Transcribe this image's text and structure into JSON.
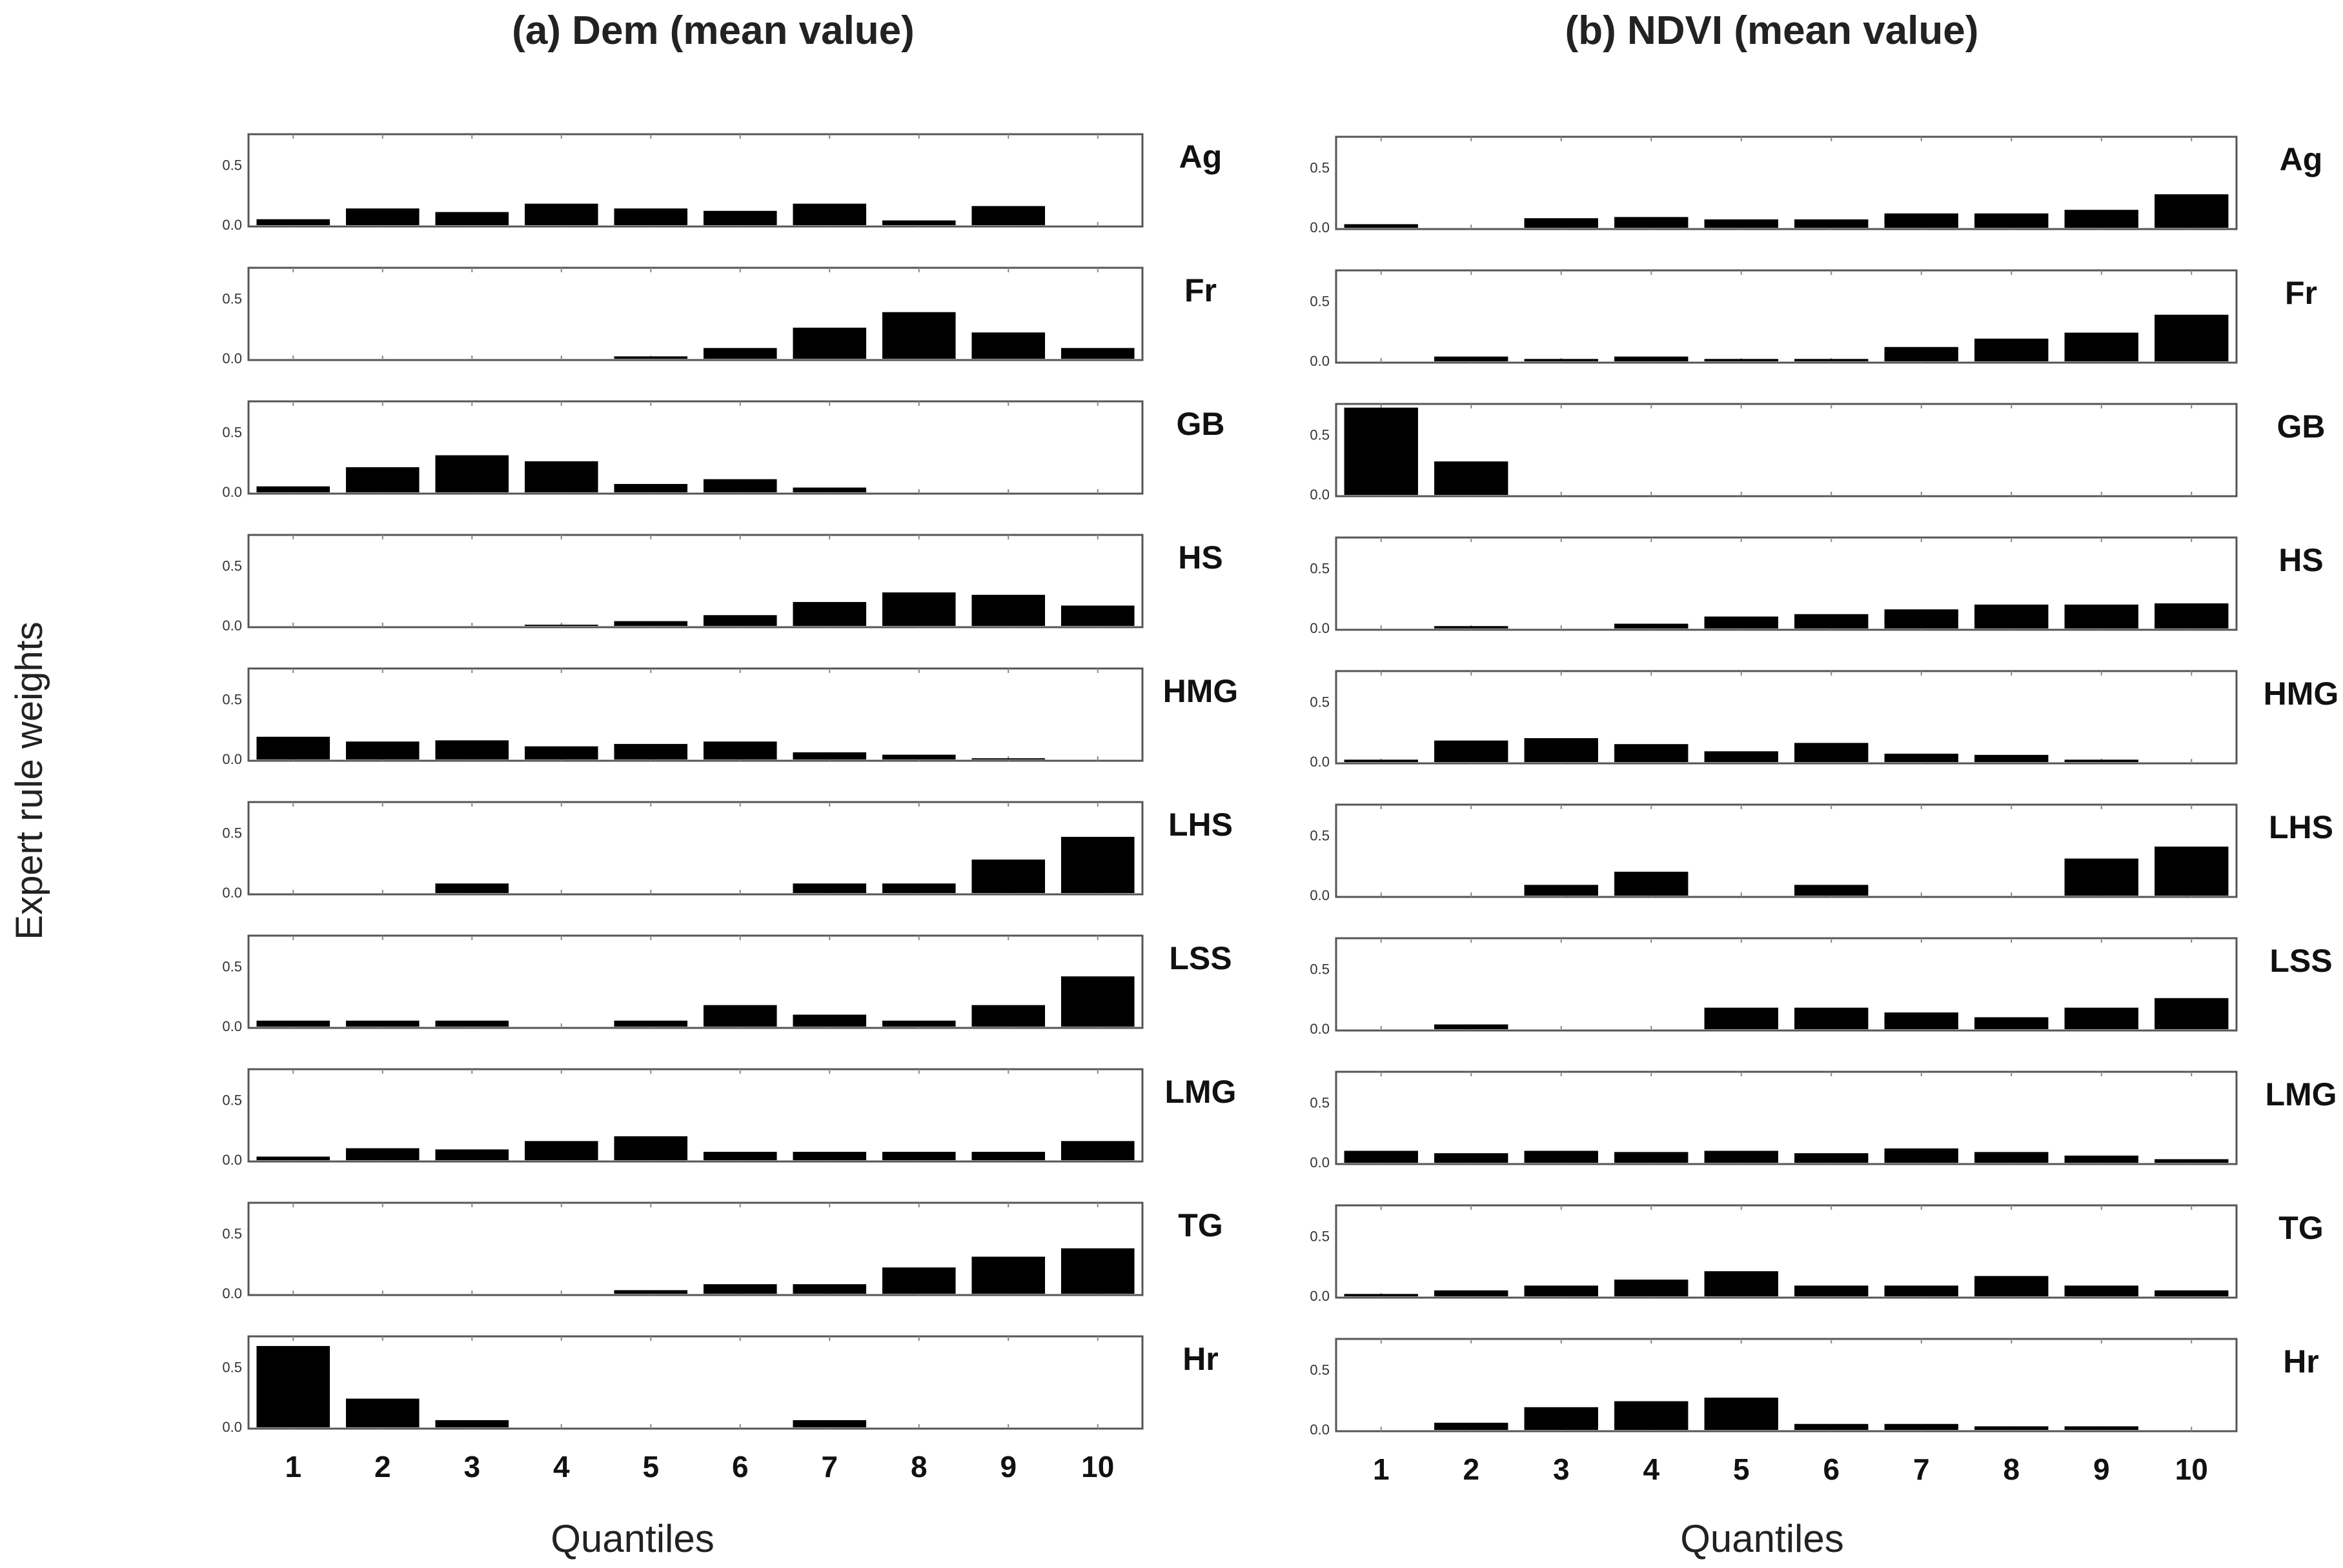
{
  "figure": {
    "ylabel": "Expert rule weights",
    "quantiles": [
      "1",
      "2",
      "3",
      "4",
      "5",
      "6",
      "7",
      "8",
      "9",
      "10"
    ],
    "y_ticks": [
      "0.0",
      "0.5"
    ],
    "ylim": [
      0,
      0.75
    ]
  },
  "chart_data": [
    {
      "type": "bar",
      "title": "(a) Dem (mean value)",
      "xlabel": "Quantiles",
      "ylabel": "Expert rule weights",
      "ylim": [
        0,
        0.75
      ],
      "categories": [
        "1",
        "2",
        "3",
        "4",
        "5",
        "6",
        "7",
        "8",
        "9",
        "10"
      ],
      "series": [
        {
          "name": "Ag",
          "values": [
            0.05,
            0.14,
            0.11,
            0.18,
            0.14,
            0.12,
            0.18,
            0.04,
            0.16,
            0.0
          ]
        },
        {
          "name": "Fr",
          "values": [
            0.0,
            0.0,
            0.0,
            0.0,
            0.02,
            0.09,
            0.26,
            0.39,
            0.22,
            0.09
          ]
        },
        {
          "name": "GB",
          "values": [
            0.05,
            0.21,
            0.31,
            0.26,
            0.07,
            0.11,
            0.04,
            0.0,
            0.0,
            0.0
          ]
        },
        {
          "name": "HS",
          "values": [
            0.0,
            0.0,
            0.0,
            0.01,
            0.04,
            0.09,
            0.2,
            0.28,
            0.26,
            0.17
          ]
        },
        {
          "name": "HMG",
          "values": [
            0.19,
            0.15,
            0.16,
            0.11,
            0.13,
            0.15,
            0.06,
            0.04,
            0.01,
            0.0
          ]
        },
        {
          "name": "LHS",
          "values": [
            0.0,
            0.0,
            0.08,
            0.0,
            0.0,
            0.0,
            0.08,
            0.08,
            0.28,
            0.47
          ]
        },
        {
          "name": "LSS",
          "values": [
            0.05,
            0.05,
            0.05,
            0.0,
            0.05,
            0.18,
            0.1,
            0.05,
            0.18,
            0.42
          ]
        },
        {
          "name": "LMG",
          "values": [
            0.03,
            0.1,
            0.09,
            0.16,
            0.2,
            0.07,
            0.07,
            0.07,
            0.07,
            0.16
          ]
        },
        {
          "name": "TG",
          "values": [
            0.0,
            0.0,
            0.0,
            0.0,
            0.03,
            0.08,
            0.08,
            0.22,
            0.31,
            0.38
          ]
        },
        {
          "name": "Hr",
          "values": [
            0.68,
            0.24,
            0.06,
            0.0,
            0.0,
            0.0,
            0.06,
            0.0,
            0.0,
            0.0
          ]
        }
      ]
    },
    {
      "type": "bar",
      "title": "(b) NDVI (mean value)",
      "xlabel": "Quantiles",
      "ylabel": "Expert rule weights",
      "ylim": [
        0,
        0.75
      ],
      "categories": [
        "1",
        "2",
        "3",
        "4",
        "5",
        "6",
        "7",
        "8",
        "9",
        "10"
      ],
      "series": [
        {
          "name": "Ag",
          "values": [
            0.03,
            0.0,
            0.08,
            0.09,
            0.07,
            0.07,
            0.12,
            0.12,
            0.15,
            0.28
          ]
        },
        {
          "name": "Fr",
          "values": [
            0.0,
            0.04,
            0.02,
            0.04,
            0.02,
            0.02,
            0.12,
            0.19,
            0.24,
            0.39
          ]
        },
        {
          "name": "GB",
          "values": [
            0.73,
            0.28,
            0.0,
            0.0,
            0.0,
            0.0,
            0.0,
            0.0,
            0.0,
            0.0
          ]
        },
        {
          "name": "HS",
          "values": [
            0.0,
            0.02,
            0.0,
            0.04,
            0.1,
            0.12,
            0.16,
            0.2,
            0.2,
            0.21
          ]
        },
        {
          "name": "HMG",
          "values": [
            0.02,
            0.18,
            0.2,
            0.15,
            0.09,
            0.16,
            0.07,
            0.06,
            0.02,
            0.0
          ]
        },
        {
          "name": "LHS",
          "values": [
            0.0,
            0.0,
            0.09,
            0.2,
            0.0,
            0.09,
            0.0,
            0.0,
            0.31,
            0.41
          ]
        },
        {
          "name": "LSS",
          "values": [
            0.0,
            0.04,
            0.0,
            0.0,
            0.18,
            0.18,
            0.14,
            0.1,
            0.18,
            0.26
          ]
        },
        {
          "name": "LMG",
          "values": [
            0.1,
            0.08,
            0.1,
            0.09,
            0.1,
            0.08,
            0.12,
            0.09,
            0.06,
            0.03
          ]
        },
        {
          "name": "TG",
          "values": [
            0.02,
            0.05,
            0.09,
            0.14,
            0.21,
            0.09,
            0.09,
            0.17,
            0.09,
            0.05
          ]
        },
        {
          "name": "Hr",
          "values": [
            0.0,
            0.06,
            0.19,
            0.24,
            0.27,
            0.05,
            0.05,
            0.03,
            0.03,
            0.0
          ]
        }
      ]
    }
  ]
}
